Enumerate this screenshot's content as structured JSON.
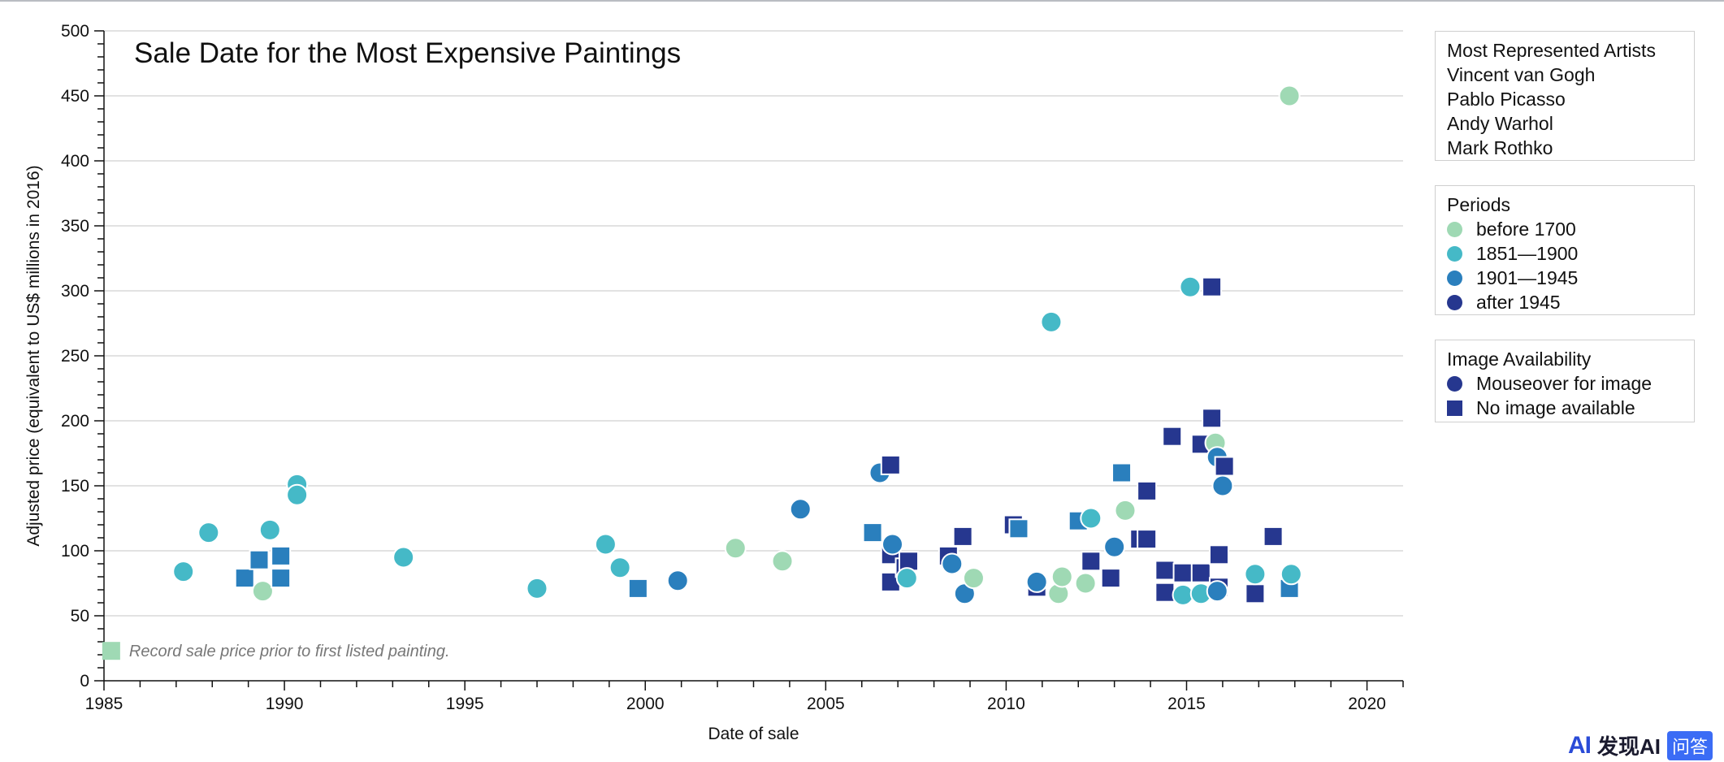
{
  "chart_data": {
    "type": "scatter",
    "title": "Sale Date for the Most Expensive Paintings",
    "xlabel": "Date of sale",
    "ylabel": "Adjusted price (equivalent to US$ millions in 2016)",
    "xlim": [
      1985,
      2021
    ],
    "ylim": [
      0,
      500
    ],
    "x_ticks": [
      1985,
      1990,
      1995,
      2000,
      2005,
      2010,
      2015,
      2020
    ],
    "y_ticks": [
      0,
      50,
      100,
      150,
      200,
      250,
      300,
      350,
      400,
      450,
      500
    ],
    "grid": "horizontal",
    "legend_placement": "right",
    "periods": {
      "before1700": {
        "label": "before 1700",
        "color": "#9fd9b4"
      },
      "p1851": {
        "label": "1851—1900",
        "color": "#45b9c7"
      },
      "p1901": {
        "label": "1901—1945",
        "color": "#2a7fbd"
      },
      "after1945": {
        "label": "after 1945",
        "color": "#26378f"
      }
    },
    "note": {
      "x": 1985.2,
      "y": 23,
      "period": "before1700",
      "marker": "square",
      "text": "Record sale price prior to first listed painting."
    },
    "points": [
      {
        "x": 1987.2,
        "y": 84,
        "period": "p1851",
        "marker": "circle"
      },
      {
        "x": 1987.9,
        "y": 114,
        "period": "p1851",
        "marker": "circle"
      },
      {
        "x": 1988.9,
        "y": 79,
        "period": "p1901",
        "marker": "square"
      },
      {
        "x": 1989.3,
        "y": 93,
        "period": "p1901",
        "marker": "square"
      },
      {
        "x": 1989.4,
        "y": 69,
        "period": "before1700",
        "marker": "circle"
      },
      {
        "x": 1989.6,
        "y": 116,
        "period": "p1851",
        "marker": "circle"
      },
      {
        "x": 1989.9,
        "y": 96,
        "period": "p1901",
        "marker": "square"
      },
      {
        "x": 1989.9,
        "y": 79,
        "period": "p1901",
        "marker": "square"
      },
      {
        "x": 1990.35,
        "y": 151,
        "period": "p1851",
        "marker": "circle"
      },
      {
        "x": 1990.35,
        "y": 143,
        "period": "p1851",
        "marker": "circle"
      },
      {
        "x": 1993.3,
        "y": 95,
        "period": "p1851",
        "marker": "circle"
      },
      {
        "x": 1997.0,
        "y": 71,
        "period": "p1851",
        "marker": "circle"
      },
      {
        "x": 1998.9,
        "y": 105,
        "period": "p1851",
        "marker": "circle"
      },
      {
        "x": 1999.3,
        "y": 87,
        "period": "p1851",
        "marker": "circle"
      },
      {
        "x": 1999.8,
        "y": 71,
        "period": "p1901",
        "marker": "square"
      },
      {
        "x": 2000.9,
        "y": 77,
        "period": "p1901",
        "marker": "circle"
      },
      {
        "x": 2002.5,
        "y": 102,
        "period": "before1700",
        "marker": "circle"
      },
      {
        "x": 2003.8,
        "y": 92,
        "period": "before1700",
        "marker": "circle"
      },
      {
        "x": 2004.3,
        "y": 132,
        "period": "p1901",
        "marker": "circle"
      },
      {
        "x": 2006.3,
        "y": 114,
        "period": "p1901",
        "marker": "square"
      },
      {
        "x": 2006.5,
        "y": 160,
        "period": "p1901",
        "marker": "circle"
      },
      {
        "x": 2006.8,
        "y": 166,
        "period": "after1945",
        "marker": "square"
      },
      {
        "x": 2006.8,
        "y": 97,
        "period": "after1945",
        "marker": "square"
      },
      {
        "x": 2006.8,
        "y": 76,
        "period": "after1945",
        "marker": "square"
      },
      {
        "x": 2006.85,
        "y": 105,
        "period": "p1901",
        "marker": "circle"
      },
      {
        "x": 2007.2,
        "y": 87,
        "period": "after1945",
        "marker": "square"
      },
      {
        "x": 2007.3,
        "y": 92,
        "period": "after1945",
        "marker": "square"
      },
      {
        "x": 2007.25,
        "y": 79,
        "period": "p1851",
        "marker": "circle"
      },
      {
        "x": 2008.4,
        "y": 96,
        "period": "after1945",
        "marker": "square"
      },
      {
        "x": 2008.5,
        "y": 90,
        "period": "p1901",
        "marker": "circle"
      },
      {
        "x": 2008.8,
        "y": 111,
        "period": "after1945",
        "marker": "square"
      },
      {
        "x": 2008.85,
        "y": 67,
        "period": "p1901",
        "marker": "circle"
      },
      {
        "x": 2009.1,
        "y": 79,
        "period": "before1700",
        "marker": "circle"
      },
      {
        "x": 2010.2,
        "y": 120,
        "period": "after1945",
        "marker": "square"
      },
      {
        "x": 2010.35,
        "y": 117,
        "period": "p1901",
        "marker": "square"
      },
      {
        "x": 2010.85,
        "y": 72,
        "period": "after1945",
        "marker": "square"
      },
      {
        "x": 2010.85,
        "y": 76,
        "period": "p1901",
        "marker": "circle"
      },
      {
        "x": 2011.25,
        "y": 276,
        "period": "p1851",
        "marker": "circle"
      },
      {
        "x": 2011.45,
        "y": 67,
        "period": "before1700",
        "marker": "circle"
      },
      {
        "x": 2011.55,
        "y": 80,
        "period": "before1700",
        "marker": "circle"
      },
      {
        "x": 2012.0,
        "y": 123,
        "period": "p1901",
        "marker": "square"
      },
      {
        "x": 2012.2,
        "y": 75,
        "period": "before1700",
        "marker": "circle"
      },
      {
        "x": 2012.35,
        "y": 125,
        "period": "p1851",
        "marker": "circle"
      },
      {
        "x": 2012.35,
        "y": 92,
        "period": "after1945",
        "marker": "square"
      },
      {
        "x": 2012.9,
        "y": 79,
        "period": "after1945",
        "marker": "square"
      },
      {
        "x": 2013.0,
        "y": 103,
        "period": "p1901",
        "marker": "circle"
      },
      {
        "x": 2013.2,
        "y": 160,
        "period": "p1901",
        "marker": "square"
      },
      {
        "x": 2013.3,
        "y": 131,
        "period": "before1700",
        "marker": "circle"
      },
      {
        "x": 2013.7,
        "y": 109,
        "period": "after1945",
        "marker": "square"
      },
      {
        "x": 2013.9,
        "y": 146,
        "period": "after1945",
        "marker": "square"
      },
      {
        "x": 2013.9,
        "y": 109,
        "period": "after1945",
        "marker": "square"
      },
      {
        "x": 2014.4,
        "y": 85,
        "period": "after1945",
        "marker": "square"
      },
      {
        "x": 2014.4,
        "y": 68,
        "period": "after1945",
        "marker": "square"
      },
      {
        "x": 2014.6,
        "y": 188,
        "period": "after1945",
        "marker": "square"
      },
      {
        "x": 2014.9,
        "y": 83,
        "period": "after1945",
        "marker": "square"
      },
      {
        "x": 2014.9,
        "y": 66,
        "period": "p1851",
        "marker": "circle"
      },
      {
        "x": 2015.1,
        "y": 303,
        "period": "p1851",
        "marker": "circle"
      },
      {
        "x": 2015.4,
        "y": 182,
        "period": "after1945",
        "marker": "square"
      },
      {
        "x": 2015.4,
        "y": 83,
        "period": "after1945",
        "marker": "square"
      },
      {
        "x": 2015.4,
        "y": 67,
        "period": "p1851",
        "marker": "circle"
      },
      {
        "x": 2015.7,
        "y": 303,
        "period": "after1945",
        "marker": "square"
      },
      {
        "x": 2015.7,
        "y": 202,
        "period": "after1945",
        "marker": "square"
      },
      {
        "x": 2015.8,
        "y": 183,
        "period": "before1700",
        "marker": "circle"
      },
      {
        "x": 2015.85,
        "y": 172,
        "period": "p1901",
        "marker": "circle"
      },
      {
        "x": 2015.9,
        "y": 97,
        "period": "after1945",
        "marker": "square"
      },
      {
        "x": 2015.9,
        "y": 72,
        "period": "after1945",
        "marker": "square"
      },
      {
        "x": 2015.85,
        "y": 69,
        "period": "p1901",
        "marker": "circle"
      },
      {
        "x": 2016.05,
        "y": 165,
        "period": "after1945",
        "marker": "square"
      },
      {
        "x": 2016.0,
        "y": 150,
        "period": "p1901",
        "marker": "circle"
      },
      {
        "x": 2016.9,
        "y": 67,
        "period": "after1945",
        "marker": "square"
      },
      {
        "x": 2016.9,
        "y": 82,
        "period": "p1851",
        "marker": "circle"
      },
      {
        "x": 2017.4,
        "y": 111,
        "period": "after1945",
        "marker": "square"
      },
      {
        "x": 2017.85,
        "y": 450,
        "period": "before1700",
        "marker": "circle"
      },
      {
        "x": 2017.85,
        "y": 71,
        "period": "p1901",
        "marker": "square"
      },
      {
        "x": 2017.9,
        "y": 82,
        "period": "p1851",
        "marker": "circle"
      }
    ]
  },
  "legend": {
    "artists": {
      "title": "Most Represented Artists",
      "items": [
        "Vincent van Gogh",
        "Pablo Picasso",
        "Andy Warhol",
        "Mark Rothko"
      ]
    },
    "periods": {
      "title": "Periods",
      "items": [
        {
          "label": "before 1700",
          "color": "#9fd9b4"
        },
        {
          "label": "1851—1900",
          "color": "#45b9c7"
        },
        {
          "label": "1901—1945",
          "color": "#2a7fbd"
        },
        {
          "label": "after 1945",
          "color": "#26378f"
        }
      ]
    },
    "availability": {
      "title": "Image Availability",
      "items": [
        {
          "label": "Mouseover for image",
          "marker": "circle",
          "color": "#26378f"
        },
        {
          "label": "No image available",
          "marker": "square",
          "color": "#26378f"
        }
      ]
    }
  },
  "watermark": {
    "logo": "AI",
    "brand": "发现AI",
    "badge": "问答"
  }
}
